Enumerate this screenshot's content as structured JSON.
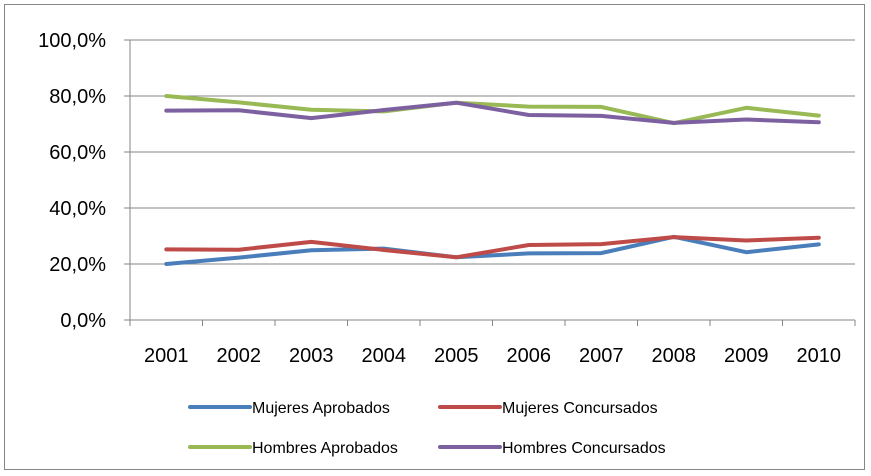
{
  "chart_data": {
    "type": "line",
    "title": "",
    "xlabel": "",
    "ylabel": "",
    "categories": [
      "2001",
      "2002",
      "2003",
      "2004",
      "2005",
      "2006",
      "2007",
      "2008",
      "2009",
      "2010"
    ],
    "ylim": [
      0,
      100
    ],
    "y_ticks": [
      "0,0%",
      "20,0%",
      "40,0%",
      "60,0%",
      "80,0%",
      "100,0%"
    ],
    "grid": true,
    "legend_position": "bottom",
    "series": [
      {
        "name": "Mujeres Aprobados",
        "color": "#4A7EBB",
        "values": [
          20.0,
          22.3,
          24.9,
          25.5,
          22.4,
          23.8,
          23.9,
          29.7,
          24.2,
          27.0
        ]
      },
      {
        "name": "Mujeres Concursados",
        "color": "#BE4B48",
        "values": [
          25.2,
          25.1,
          27.9,
          25.0,
          22.4,
          26.8,
          27.1,
          29.6,
          28.4,
          29.4
        ]
      },
      {
        "name": "Hombres Aprobados",
        "color": "#98B954",
        "values": [
          80.0,
          77.7,
          75.1,
          74.5,
          77.6,
          76.2,
          76.1,
          70.3,
          75.8,
          73.0
        ]
      },
      {
        "name": "Hombres Concursados",
        "color": "#7D60A0",
        "values": [
          74.8,
          74.9,
          72.1,
          75.0,
          77.6,
          73.2,
          72.9,
          70.4,
          71.6,
          70.6
        ]
      }
    ]
  }
}
